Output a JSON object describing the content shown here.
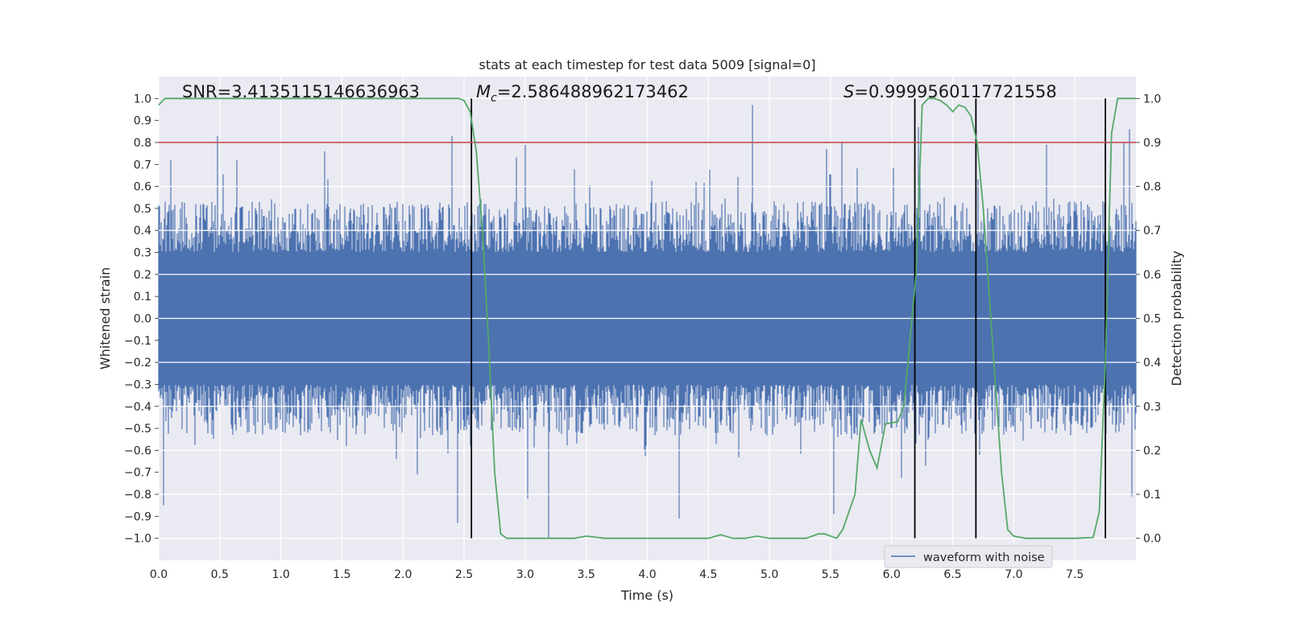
{
  "chart_data": {
    "type": "line",
    "title": "stats at each timestep for test data 5009 [signal=0]",
    "xlabel": "Time (s)",
    "ylabel": "Whitened strain",
    "ylabel_right": "Detection probability",
    "xlim": [
      0.0,
      8.0
    ],
    "ylim": [
      -1.1,
      1.1
    ],
    "ylim_right": [
      -0.05,
      1.05
    ],
    "x_ticks": [
      "0.0",
      "0.5",
      "1.0",
      "1.5",
      "2.0",
      "2.5",
      "3.0",
      "3.5",
      "4.0",
      "4.5",
      "5.0",
      "5.5",
      "6.0",
      "6.5",
      "7.0",
      "7.5"
    ],
    "y_ticks": [
      "1.0",
      "0.9",
      "0.8",
      "0.7",
      "0.6",
      "0.5",
      "0.4",
      "0.3",
      "0.2",
      "0.1",
      "0.0",
      "−0.1",
      "−0.2",
      "−0.3",
      "−0.4",
      "−0.5",
      "−0.6",
      "−0.7",
      "−0.8",
      "−0.9",
      "−1.0"
    ],
    "y_right_ticks": [
      "1.0",
      "0.9",
      "0.8",
      "0.7",
      "0.6",
      "0.5",
      "0.4",
      "0.3",
      "0.2",
      "0.1",
      "0.0"
    ],
    "grid": true,
    "legend": {
      "entries": [
        "waveform with noise"
      ],
      "placement": "lower-right"
    },
    "annotations": {
      "snr": "SNR=3.4135115146636963",
      "mc_symbol": "M",
      "mc_sub": "c",
      "mc_value": "=2.586488962173462",
      "s_symbol": "S",
      "s_value": "=0.9999560117721558"
    },
    "threshold_line": {
      "value_right": 0.9,
      "color": "#c44e52"
    },
    "vertical_lines_s": [
      2.56,
      6.19,
      6.69,
      7.75
    ],
    "series": [
      {
        "name": "waveform with noise",
        "role": "noisy whitened strain, left axis",
        "color": "#4c72b0",
        "sample_rate_hz": 2048,
        "typical_amplitude": 0.42,
        "peak_events": [
          {
            "t": 0.04,
            "v": -0.85
          },
          {
            "t": 0.1,
            "v": 0.72
          },
          {
            "t": 0.48,
            "v": 0.83
          },
          {
            "t": 0.64,
            "v": 0.72
          },
          {
            "t": 1.36,
            "v": 0.76
          },
          {
            "t": 2.4,
            "v": 0.83
          },
          {
            "t": 2.45,
            "v": -0.93
          },
          {
            "t": 2.55,
            "v": -0.58
          },
          {
            "t": 3.0,
            "v": 0.79
          },
          {
            "t": 3.02,
            "v": -0.82
          },
          {
            "t": 3.19,
            "v": -1.0
          },
          {
            "t": 4.26,
            "v": -0.91
          },
          {
            "t": 4.4,
            "v": 0.62
          },
          {
            "t": 4.86,
            "v": 0.97
          },
          {
            "t": 5.47,
            "v": 0.77
          },
          {
            "t": 5.53,
            "v": -0.89
          },
          {
            "t": 5.59,
            "v": 0.8
          },
          {
            "t": 6.22,
            "v": 0.87
          },
          {
            "t": 7.27,
            "v": 0.79
          },
          {
            "t": 7.9,
            "v": 0.8
          },
          {
            "t": 7.95,
            "v": 0.86
          },
          {
            "t": 7.97,
            "v": -0.81
          }
        ]
      },
      {
        "name": "detection probability",
        "role": "right axis",
        "color": "#55a868",
        "x": [
          0.0,
          0.05,
          0.1,
          0.3,
          0.6,
          1.0,
          1.5,
          2.0,
          2.3,
          2.46,
          2.5,
          2.55,
          2.6,
          2.65,
          2.7,
          2.75,
          2.8,
          2.85,
          2.9,
          3.0,
          3.2,
          3.4,
          3.5,
          3.65,
          4.0,
          4.5,
          4.6,
          4.7,
          4.8,
          4.9,
          5.0,
          5.3,
          5.4,
          5.45,
          5.55,
          5.6,
          5.7,
          5.75,
          5.82,
          5.88,
          5.95,
          6.05,
          6.1,
          6.15,
          6.2,
          6.25,
          6.3,
          6.35,
          6.4,
          6.45,
          6.5,
          6.55,
          6.6,
          6.65,
          6.7,
          6.75,
          6.8,
          6.85,
          6.9,
          6.95,
          7.0,
          7.1,
          7.5,
          7.65,
          7.7,
          7.75,
          7.8,
          7.85,
          7.9,
          7.95,
          8.0
        ],
        "y": [
          0.985,
          1.0,
          1.0,
          1.0,
          1.0,
          1.0,
          1.0,
          1.0,
          1.0,
          1.0,
          0.995,
          0.97,
          0.88,
          0.7,
          0.45,
          0.15,
          0.01,
          0.0,
          0.0,
          0.0,
          0.0,
          0.0,
          0.005,
          0.0,
          0.0,
          0.0,
          0.008,
          0.0,
          0.0,
          0.005,
          0.0,
          0.0,
          0.01,
          0.01,
          0.0,
          0.02,
          0.1,
          0.27,
          0.2,
          0.16,
          0.26,
          0.265,
          0.3,
          0.45,
          0.6,
          0.985,
          1.0,
          1.0,
          0.995,
          0.985,
          0.97,
          0.985,
          0.98,
          0.96,
          0.9,
          0.75,
          0.55,
          0.35,
          0.15,
          0.02,
          0.005,
          0.0,
          0.0,
          0.002,
          0.06,
          0.4,
          0.92,
          1.0,
          1.0,
          1.0,
          1.0
        ]
      }
    ]
  }
}
